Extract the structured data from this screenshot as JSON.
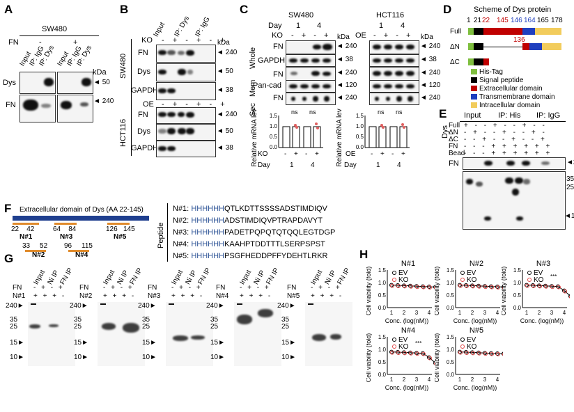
{
  "panels": [
    "A",
    "B",
    "C",
    "D",
    "E",
    "F",
    "G",
    "H"
  ],
  "A": {
    "title": "SW480",
    "fn_label": "FN",
    "fn_minus": "-",
    "fn_plus": "+",
    "lanes": [
      "Input",
      "IP: IgG",
      "IP: Dys",
      "Input",
      "IP: IgG",
      "IP: Dys"
    ],
    "rows": [
      "Dys",
      "FN"
    ],
    "kda": "kDa",
    "markers": [
      "50",
      "240"
    ]
  },
  "B": {
    "lanes": [
      "Input",
      "IP: Dys",
      "IP: IgG"
    ],
    "ko_label": "KO",
    "oe_label": "OE",
    "signs": [
      "-",
      "+",
      "-",
      "+",
      "-",
      "+"
    ],
    "kda": "kDa",
    "cell_lines": [
      "SW480",
      "HCT116"
    ],
    "rows": [
      "FN",
      "Dys",
      "GAPDH"
    ],
    "markers": [
      "240",
      "50",
      "38"
    ]
  },
  "C": {
    "lines": [
      "SW480",
      "HCT116"
    ],
    "day_label": "Day",
    "days": [
      "1",
      "4"
    ],
    "ko_label": "KO",
    "oe_label": "OE",
    "signs": [
      "-",
      "+",
      "-",
      "+"
    ],
    "kda": "kDa",
    "groups": [
      "Whole",
      "Mem",
      "Sec"
    ],
    "rows": [
      "FN",
      "GAPDH",
      "FN",
      "Pan-cad",
      "FN"
    ],
    "markers": [
      "240",
      "38",
      "240",
      "120",
      "240"
    ],
    "ylabel": "Relative mRNA level",
    "ns": "ns",
    "yticks": [
      "0.0",
      "0.5",
      "1.0",
      "1.5"
    ],
    "bar_means": [
      1.0,
      1.0,
      1.0,
      1.0
    ]
  },
  "D": {
    "title": "Scheme of Dys protein",
    "constructs": [
      "Full",
      "ΔN",
      "ΔC"
    ],
    "positions": [
      "1",
      "21",
      "22",
      "145",
      "146",
      "164",
      "165",
      "178"
    ],
    "dn_start": "136",
    "legend": [
      {
        "label": "His-Tag",
        "color": "#7fbf3f"
      },
      {
        "label": "Signal peptide",
        "color": "#000000"
      },
      {
        "label": "Extracellular domain",
        "color": "#c00000"
      },
      {
        "label": "Transmembrane domain",
        "color": "#1f3fbf"
      },
      {
        "label": "Intracellular domain",
        "color": "#f2cc5c"
      }
    ]
  },
  "E": {
    "headers": [
      "Input",
      "IP: His",
      "IP: IgG"
    ],
    "dys_label": "Dys",
    "rows": [
      {
        "label": "Full",
        "signs": [
          "+",
          "-",
          "-",
          "+",
          "-",
          "-",
          "+",
          "-",
          "-"
        ]
      },
      {
        "label": "ΔN",
        "signs": [
          "-",
          "+",
          "-",
          "-",
          "+",
          "-",
          "-",
          "+",
          "-"
        ]
      },
      {
        "label": "ΔC",
        "signs": [
          "-",
          "-",
          "+",
          "-",
          "-",
          "+",
          "-",
          "-",
          "+"
        ]
      },
      {
        "label": "FN",
        "signs": [
          "-",
          "-",
          "-",
          "+",
          "+",
          "+",
          "+",
          "+",
          "+"
        ]
      },
      {
        "label": "Bead",
        "signs": [
          "-",
          "-",
          "-",
          "+",
          "+",
          "+",
          "+",
          "+",
          "+"
        ]
      }
    ],
    "blot_labels": [
      "FN"
    ],
    "markers": [
      "240",
      "35",
      "25",
      "10"
    ]
  },
  "F": {
    "header": "Extracellular domain of Dys (AA 22-145)",
    "segments": [
      {
        "name": "N#1",
        "range": [
          "22",
          "42"
        ]
      },
      {
        "name": "N#2",
        "range": [
          "33",
          "52"
        ]
      },
      {
        "name": "N#3",
        "range": [
          "64",
          "84"
        ]
      },
      {
        "name": "N#4",
        "range": [
          "96",
          "115"
        ]
      },
      {
        "name": "N#5",
        "range": [
          "126",
          "145"
        ]
      }
    ],
    "peptide_label": "Peptide",
    "peptides": [
      {
        "name": "N#1:",
        "tag": "HHHHHH",
        "seq": "QTLKDTTSSSSADSTIMDIQV"
      },
      {
        "name": "N#2:",
        "tag": "HHHHHH",
        "seq": "ADSTIMDIQVPTRAPDAVYT"
      },
      {
        "name": "N#3:",
        "tag": "HHHHHH",
        "seq": "PADETPQPQTQTQQLEGTDGP"
      },
      {
        "name": "N#4:",
        "tag": "HHHHHH",
        "seq": "KAAHPTDDTTTLSERPSPST"
      },
      {
        "name": "N#5:",
        "tag": "HHHHHH",
        "seq": "PSGFHEDDPFFYDEHTLRKR"
      }
    ]
  },
  "G": {
    "lanes": [
      "Input",
      "Ni IP",
      "FN IP"
    ],
    "fn_label": "FN",
    "fn_signs": [
      "-",
      "+",
      "-",
      "+"
    ],
    "n_signs": [
      "+",
      "+",
      "+",
      "-"
    ],
    "gels": [
      "N#1",
      "N#2",
      "N#3",
      "N#4",
      "N#5"
    ],
    "markers": [
      "240",
      "35",
      "25",
      "15",
      "10"
    ]
  },
  "H": {
    "titles": [
      "N#1",
      "N#2",
      "N#3",
      "N#4",
      "N#5"
    ],
    "legend": [
      "EV",
      "KO"
    ],
    "ylabel": "Cell viability (fold)",
    "xlabel": "Conc. (log(nM))",
    "xticks": [
      "1",
      "2",
      "3",
      "4"
    ],
    "yticks": [
      "0.0",
      "0.5",
      "1.0",
      "1.5"
    ],
    "sig": "***"
  }
}
